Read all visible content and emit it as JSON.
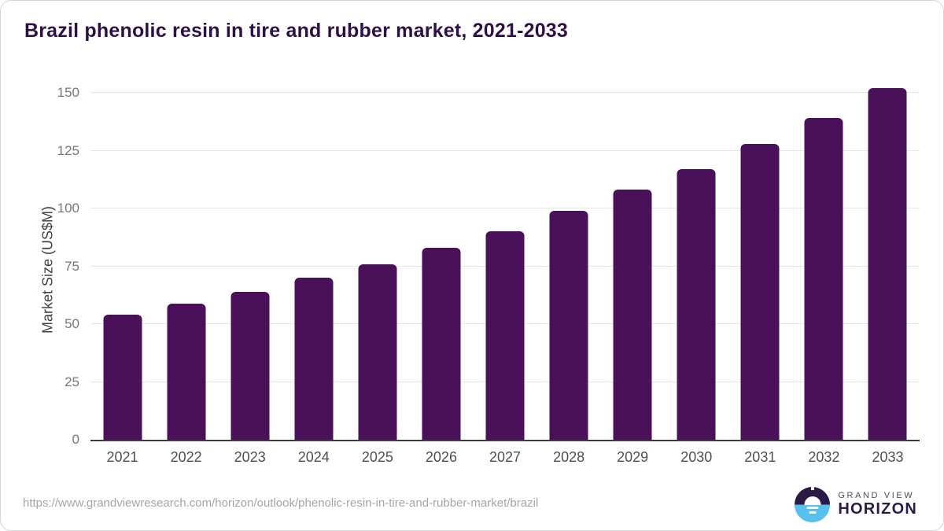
{
  "chart_data": {
    "type": "bar",
    "title": "Brazil phenolic resin in tire and rubber market, 2021-2033",
    "categories": [
      "2021",
      "2022",
      "2023",
      "2024",
      "2025",
      "2026",
      "2027",
      "2028",
      "2029",
      "2030",
      "2031",
      "2032",
      "2033"
    ],
    "values": [
      54,
      59,
      64,
      70,
      76,
      83,
      90,
      99,
      108,
      117,
      128,
      139,
      152
    ],
    "xlabel": "",
    "ylabel": "Market Size (US$M)",
    "ylim": [
      0,
      150
    ],
    "yticks": [
      0,
      25,
      50,
      75,
      100,
      125,
      150
    ],
    "grid": "horizontal-only",
    "legend": "none"
  },
  "footer": {
    "source_url": "https://www.grandviewresearch.com/horizon/outlook/phenolic-resin-in-tire-and-rubber-market/brazil",
    "logo": {
      "icon": "horizon-sun-icon",
      "line1": "GRAND VIEW",
      "line2": "HORIZON"
    }
  },
  "colors": {
    "title": "#2e1047",
    "bar": "#4a115a",
    "axis_line": "#3f3f3f",
    "gridline": "#e7e7e7",
    "tick_label": "#777777",
    "x_label": "#4f4f4f",
    "url_text": "#a6a6a6",
    "logo_top": "#2b1a45",
    "logo_bottom": "#56c1ec"
  }
}
